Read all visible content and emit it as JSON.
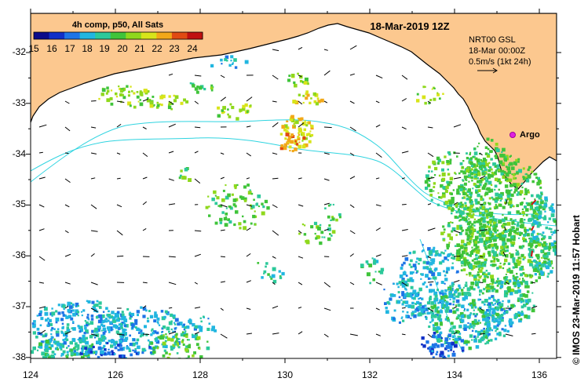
{
  "title": "18-Mar-2019 12Z",
  "colorbar": {
    "title": "4h comp, p50, All Sats",
    "ticks": [
      "15",
      "16",
      "17",
      "18",
      "19",
      "20",
      "21",
      "22",
      "23",
      "24"
    ],
    "colors": [
      "#0b0b8a",
      "#1030c8",
      "#1e74e6",
      "#21b6e0",
      "#2cc99a",
      "#3fc43a",
      "#8fd81c",
      "#d8e41a",
      "#f2a818",
      "#e04a12",
      "#c01010"
    ]
  },
  "current_info": {
    "line1": "NRT00 GSL",
    "line2": "18-Mar 00:00Z",
    "line3": "0.5m/s (1kt 24h)"
  },
  "argo_label": "Argo",
  "credit": "© IMOS 23-Mar-2019 11:57 Hobart",
  "axes": {
    "lon_ticks": [
      "124",
      "126",
      "128",
      "130",
      "132",
      "134",
      "136"
    ],
    "lat_ticks": [
      "-32",
      "-33",
      "-34",
      "-35",
      "-36",
      "-37",
      "-38"
    ]
  },
  "colors": {
    "land": "#fcc88f",
    "coast": "#000000",
    "bathymetry": "#2fd4e0",
    "argo": "#e020e0",
    "vector": "#000000",
    "strong_vector": "#d01010"
  }
}
